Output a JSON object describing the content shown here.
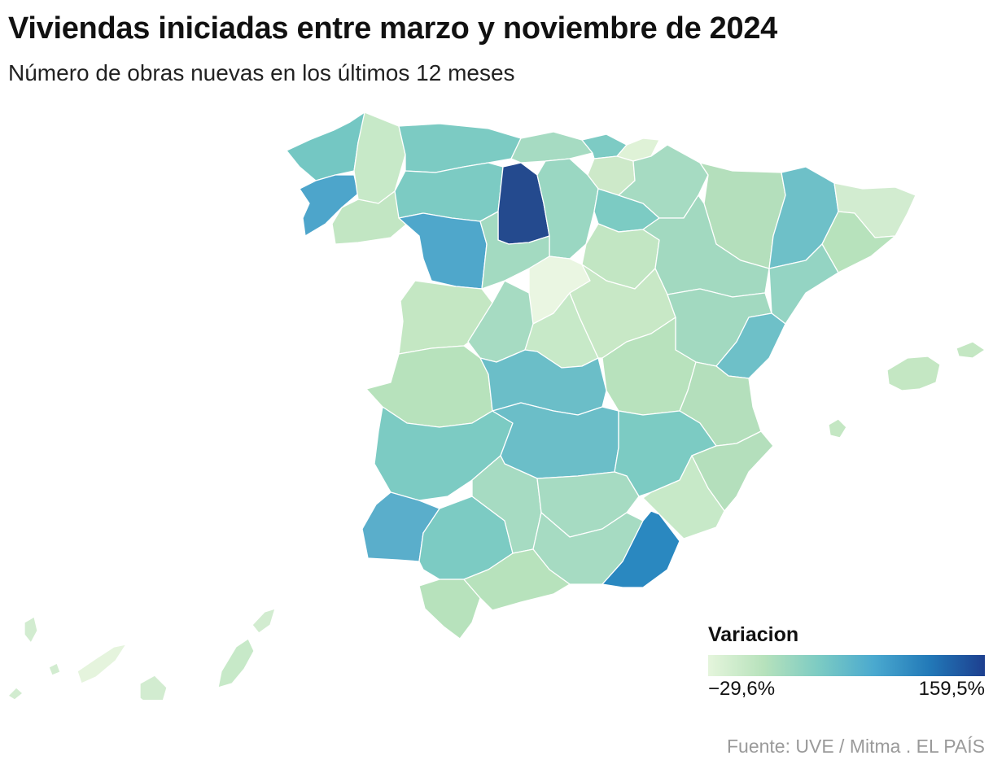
{
  "header": {
    "title": "Viviendas iniciadas entre marzo y noviembre de 2024",
    "subtitle": "Número de obras nuevas en los últimos 12 meses"
  },
  "legend": {
    "title": "Variacion",
    "min_label": "−29,6%",
    "max_label": "159,5%",
    "min_value": -29.6,
    "max_value": 159.5,
    "colors": [
      "#e5f5dc",
      "#b7e2bc",
      "#7ccbc3",
      "#4aa9cf",
      "#2279b8",
      "#1d3f8f"
    ]
  },
  "footer": {
    "source": "Fuente: UVE / Mitma . EL PAÍS"
  }
}
